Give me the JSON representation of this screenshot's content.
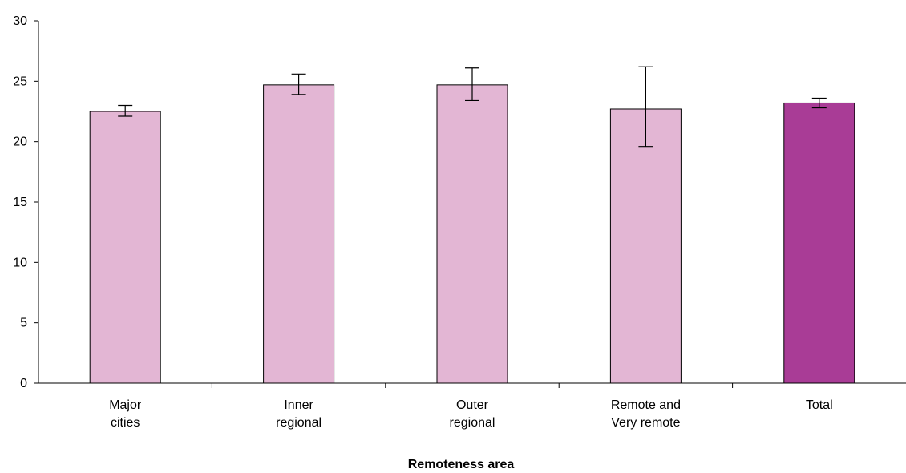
{
  "chart_data": {
    "type": "bar",
    "title": "",
    "xlabel": "Remoteness area",
    "ylabel": "",
    "ylim": [
      0,
      30
    ],
    "yticks": [
      0,
      5,
      10,
      15,
      20,
      25,
      30
    ],
    "grid": false,
    "categories": [
      [
        "Major",
        "cities"
      ],
      [
        "Inner",
        "regional"
      ],
      [
        "Outer",
        "regional"
      ],
      [
        "Remote and",
        "Very remote"
      ],
      [
        "Total"
      ]
    ],
    "values": [
      22.5,
      24.7,
      24.7,
      22.7,
      23.2
    ],
    "error_low": [
      22.1,
      23.9,
      23.4,
      19.6,
      22.8
    ],
    "error_high": [
      23.0,
      25.6,
      26.1,
      26.2,
      23.6
    ],
    "colors": {
      "bar": "#e3b6d4",
      "total_bar": "#a93c96",
      "outline": "#000000"
    }
  }
}
